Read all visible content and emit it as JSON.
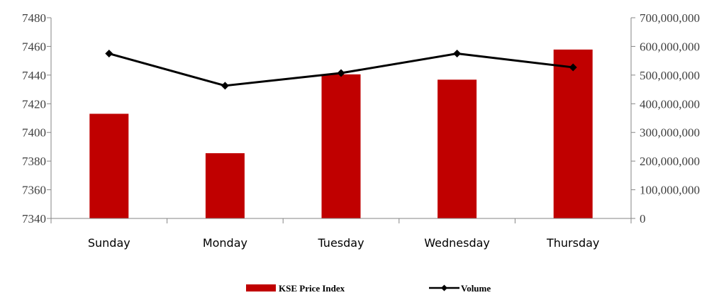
{
  "chart_data": {
    "type": "bar+line",
    "categories": [
      "Sunday",
      "Monday",
      "Tuesday",
      "Wednesday",
      "Thursday"
    ],
    "series": [
      {
        "name": "KSE Price Index",
        "type": "bar",
        "axis": "left",
        "color": "#c00000",
        "values": [
          7413,
          7385.5,
          7440.5,
          7436.8,
          7457.8
        ]
      },
      {
        "name": "Volume",
        "type": "line",
        "axis": "right",
        "color": "#000000",
        "marker": "diamond",
        "values": [
          575000000,
          463000000,
          507000000,
          575000000,
          527000000
        ]
      }
    ],
    "y_left": {
      "min": 7340,
      "max": 7480,
      "ticks": [
        7340,
        7360,
        7380,
        7400,
        7420,
        7440,
        7460,
        7480
      ],
      "tick_labels": [
        "7340",
        "7360",
        "7380",
        "7400",
        "7420",
        "7440",
        "7460",
        "7480"
      ]
    },
    "y_right": {
      "min": 0,
      "max": 700000000,
      "ticks": [
        0,
        100000000,
        200000000,
        300000000,
        400000000,
        500000000,
        600000000,
        700000000
      ],
      "tick_labels": [
        "0",
        "100,000,000",
        "200,000,000",
        "300,000,000",
        "400,000,000",
        "500,000,000",
        "600,000,000",
        "700,000,000"
      ]
    },
    "grid": false,
    "legend": "bottom",
    "title": "",
    "xlabel": "",
    "ylabel": ""
  }
}
